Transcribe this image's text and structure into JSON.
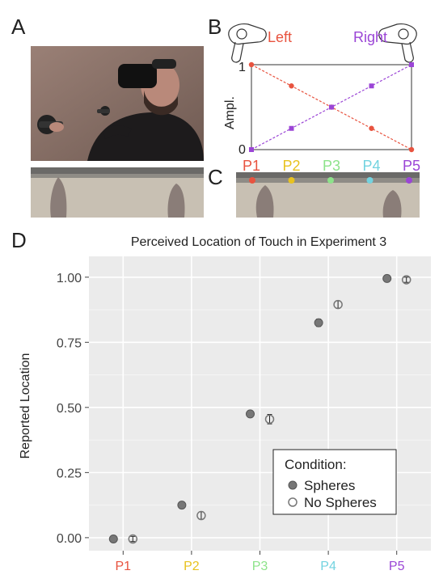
{
  "panels": {
    "a": "A",
    "b": "B",
    "c": "C",
    "d": "D"
  },
  "panel_b": {
    "left_label": "Left",
    "right_label": "Right",
    "ylabel": "Ampl.",
    "y_top": "1",
    "y_bottom": "0",
    "positions": [
      "P1",
      "P2",
      "P3",
      "P4",
      "P5"
    ],
    "position_colors": [
      "#e8533f",
      "#e8c21f",
      "#8de38a",
      "#73d3e0",
      "#9b45d6"
    ],
    "left_color": "#e8533f",
    "right_color": "#9b45d6",
    "left_amplitudes": [
      1.0,
      0.75,
      0.5,
      0.25,
      0.0
    ],
    "right_amplitudes": [
      0.0,
      0.25,
      0.5,
      0.75,
      1.0
    ]
  },
  "chart_data": {
    "type": "scatter",
    "title": "Perceived Location of Touch in Experiment 3",
    "xlabel": "",
    "ylabel": "Reported Location",
    "categories": [
      "P1",
      "P2",
      "P3",
      "P4",
      "P5"
    ],
    "category_colors": [
      "#e8533f",
      "#e8c21f",
      "#8de38a",
      "#73d3e0",
      "#9b45d6"
    ],
    "yticks": [
      "0.00",
      "0.25",
      "0.50",
      "0.75",
      "1.00"
    ],
    "ytick_values": [
      0,
      0.25,
      0.5,
      0.75,
      1.0
    ],
    "ylim": [
      -0.05,
      1.08
    ],
    "grid": true,
    "legend": {
      "title": "Condition:",
      "placement": "bottom-right"
    },
    "series": [
      {
        "name": "Spheres",
        "marker": "filled",
        "values": [
          -0.005,
          0.125,
          0.475,
          0.825,
          0.995
        ],
        "errors": [
          0.008,
          0.012,
          0.012,
          0.014,
          0.01
        ]
      },
      {
        "name": "No Spheres",
        "marker": "open",
        "values": [
          -0.005,
          0.085,
          0.455,
          0.895,
          0.99
        ],
        "errors": [
          0.01,
          0.014,
          0.018,
          0.014,
          0.01
        ]
      }
    ]
  }
}
